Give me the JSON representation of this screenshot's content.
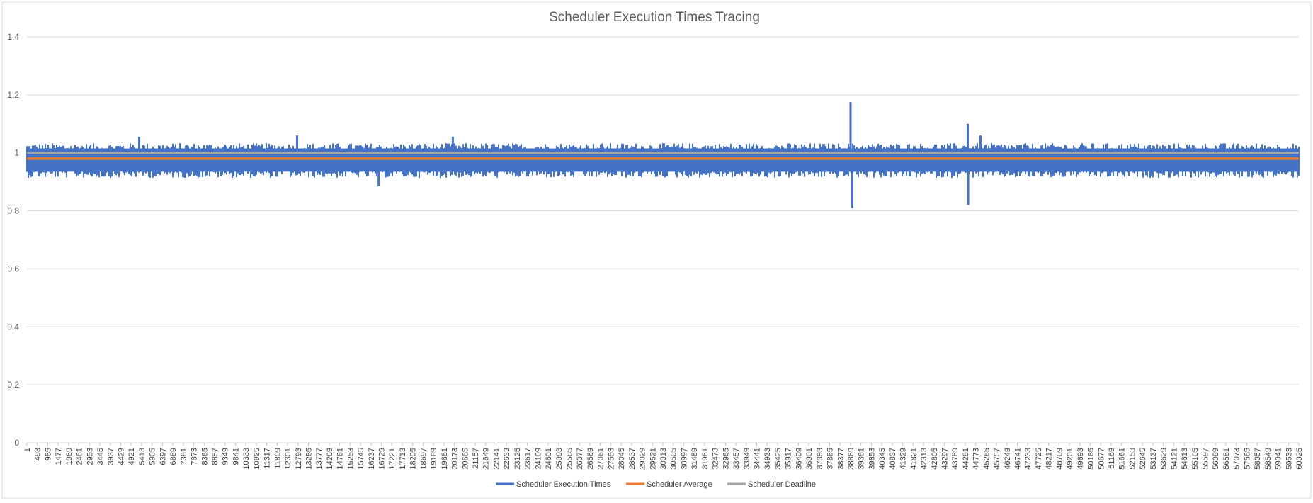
{
  "chart_data": {
    "type": "line",
    "title": "Scheduler Execution Times Tracing",
    "xlabel": "",
    "ylabel": "",
    "ylim": [
      0,
      1.4
    ],
    "yticks": [
      "0",
      "0.2",
      "0.4",
      "0.6",
      "0.8",
      "1",
      "1.2",
      "1.4"
    ],
    "xlim": [
      1,
      60025
    ],
    "xtick_step": 492,
    "grid": true,
    "legend_position": "bottom",
    "series": [
      {
        "name": "Scheduler Execution Times",
        "color": "#4472C4",
        "typical_range": [
          0.93,
          1.02
        ],
        "spikes": [
          {
            "x": 5300,
            "value": 1.055
          },
          {
            "x": 12750,
            "value": 1.06
          },
          {
            "x": 16600,
            "value": 0.885
          },
          {
            "x": 20100,
            "value": 1.055
          },
          {
            "x": 38869,
            "value": 1.175
          },
          {
            "x": 38950,
            "value": 0.81
          },
          {
            "x": 44400,
            "value": 1.1
          },
          {
            "x": 44420,
            "value": 0.82
          },
          {
            "x": 45000,
            "value": 1.06
          }
        ]
      },
      {
        "name": "Scheduler Average",
        "color": "#ED7D31",
        "value": 0.98
      },
      {
        "name": "Scheduler Deadline",
        "color": "#A5A5A5",
        "value": 1.0
      }
    ]
  }
}
